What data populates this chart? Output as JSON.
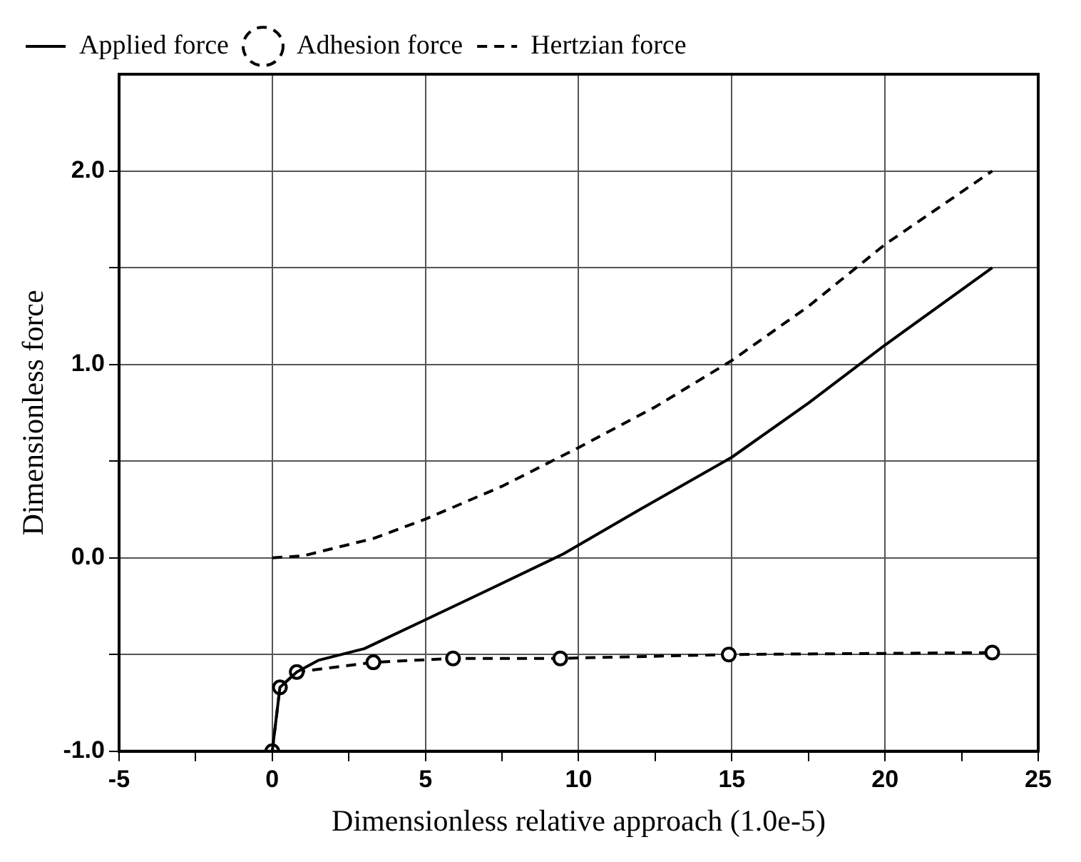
{
  "chart_data": {
    "type": "line",
    "xlabel": "Dimensionless relative approach (1.0e-5)",
    "ylabel": "Dimensionless force",
    "xlim": [
      -5,
      25
    ],
    "ylim": [
      -1,
      2.5
    ],
    "xticks": [
      -5,
      {
        "value": -2.5,
        "label": null
      },
      0,
      {
        "value": 2.5,
        "label": null
      },
      5,
      {
        "value": 7.5,
        "label": null
      },
      10,
      {
        "value": 12.5,
        "label": null
      },
      15,
      {
        "value": 17.5,
        "label": null
      },
      20,
      {
        "value": 22.5,
        "label": null
      },
      25
    ],
    "yticks": [
      {
        "value": -1,
        "label": "-1.0"
      },
      {
        "value": -0.5,
        "label": null
      },
      {
        "value": 0,
        "label": "0.0"
      },
      {
        "value": 0.5,
        "label": null
      },
      {
        "value": 1,
        "label": "1.0"
      },
      {
        "value": 1.5,
        "label": null
      },
      {
        "value": 2,
        "label": "2.0"
      }
    ],
    "grid": true,
    "legend": "top left",
    "series": [
      {
        "name": "Applied force",
        "color": "#000000",
        "marker": "none",
        "line_style": "solid",
        "x": [
          0,
          0.25,
          0.8,
          1.5,
          3,
          5,
          7,
          9.5,
          12,
          15,
          17.5,
          20,
          23.5
        ],
        "values": [
          -1,
          -0.67,
          -0.59,
          -0.53,
          -0.47,
          -0.32,
          -0.17,
          0.02,
          0.25,
          0.52,
          0.8,
          1.1,
          1.5
        ]
      },
      {
        "name": "Adhesion force",
        "color": "#000000",
        "marker": "circle",
        "line_style": "dashed",
        "x": [
          0,
          0.25,
          0.8,
          3.3,
          5.9,
          9.4,
          14.9,
          23.5
        ],
        "values": [
          -1,
          -0.67,
          -0.59,
          -0.54,
          -0.52,
          -0.52,
          -0.5,
          -0.49
        ]
      },
      {
        "name": "Hertzian force",
        "color": "#000000",
        "marker": "none",
        "line_style": "dashed",
        "x": [
          0,
          1,
          3.3,
          5,
          7.5,
          10,
          12.5,
          15,
          17.5,
          20,
          23.5
        ],
        "values": [
          0,
          0.01,
          0.1,
          0.2,
          0.37,
          0.57,
          0.78,
          1.02,
          1.3,
          1.62,
          2
        ]
      }
    ]
  }
}
